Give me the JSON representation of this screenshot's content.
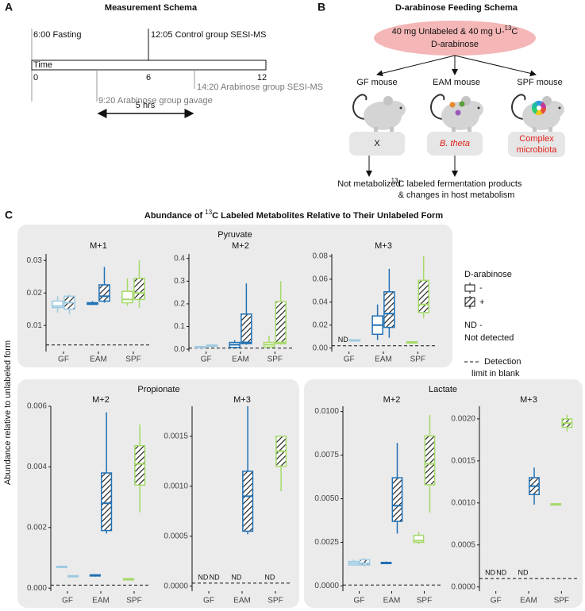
{
  "schema_a": {
    "label": "A",
    "title": "Measurement Schema",
    "fasting": "6:00 Fasting",
    "control": "12:05 Control group SESI-MS",
    "gavage": "9:20 Arabinose group gavage",
    "arabinose_ms": "14:20 Arabinose group SESI-MS",
    "axis_label": "Time",
    "ticks": [
      "0",
      "6",
      "12"
    ],
    "duration": "5 hrs"
  },
  "schema_b": {
    "label": "B",
    "title": "D-arabinose Feeding Schema",
    "dose": [
      "40 mg Unlabeled & 40 mg U-",
      "13",
      "C"
    ],
    "dose_line2": "D-arabinose",
    "mice": [
      {
        "name": "GF mouse",
        "microbe": [
          "X"
        ],
        "outcome": [
          "",
          "Not metabolized"
        ],
        "outcome_line2": null
      },
      {
        "name": "EAM mouse",
        "microbe": [
          "B. theta"
        ],
        "outcome": [
          "13",
          "C labeled fermentation products"
        ],
        "outcome_line2": "& changes in host metabolism"
      },
      {
        "name": "SPF mouse",
        "microbe": [
          "Complex",
          "microbiota"
        ],
        "outcome": null,
        "outcome_line2": null
      }
    ]
  },
  "panel_c": {
    "label": "C",
    "title": [
      "Abundance of ",
      "13",
      "C Labeled Metabolites Relative to Their Unlabeled Form"
    ],
    "ylabel": "Abundance relative to unlabeled form",
    "groups": [
      "Pyruvate",
      "Propionate",
      "Lactate"
    ],
    "legend": {
      "title": "D-arabinose",
      "nd": "ND -",
      "nd_desc": "Not detected",
      "detection": "Detection",
      "detection_desc": "limit in blank"
    }
  },
  "chart_data": [
    {
      "type": "box",
      "title": "M+1",
      "categories": [
        "GF",
        "EAM",
        "SPF"
      ],
      "colors": [
        "#9ecae1",
        "#2171b5",
        "#a6d96a"
      ],
      "ylim": [
        0.002,
        0.032
      ],
      "yticks": [
        0.01,
        0.02,
        0.03
      ],
      "detection_limit": 0.004,
      "series": [
        {
          "name": "-",
          "pattern": "plain",
          "values": [
            {
              "min": 0.014,
              "q1": 0.0155,
              "median": 0.016,
              "q3": 0.0175,
              "max": 0.019
            },
            {
              "min": 0.0163,
              "q1": 0.0165,
              "median": 0.0168,
              "q3": 0.017,
              "max": 0.0175
            },
            {
              "min": 0.016,
              "q1": 0.017,
              "median": 0.018,
              "q3": 0.0205,
              "max": 0.0245
            }
          ]
        },
        {
          "name": "+",
          "pattern": "hatched",
          "values": [
            {
              "min": 0.0135,
              "q1": 0.015,
              "median": 0.017,
              "q3": 0.019,
              "max": 0.0195
            },
            {
              "min": 0.017,
              "q1": 0.0175,
              "median": 0.019,
              "q3": 0.0225,
              "max": 0.028
            },
            {
              "min": 0.0155,
              "q1": 0.018,
              "median": 0.02,
              "q3": 0.0245,
              "max": 0.03
            }
          ]
        }
      ]
    },
    {
      "type": "box",
      "title": "M+2",
      "categories": [
        "GF",
        "EAM",
        "SPF"
      ],
      "colors": [
        "#9ecae1",
        "#2171b5",
        "#a6d96a"
      ],
      "ylim": [
        -0.01,
        0.42
      ],
      "yticks": [
        {
          "value": 0,
          "label": "0.0"
        },
        0.1,
        0.2,
        0.3,
        0.4
      ],
      "detection_limit": 0.005,
      "series": [
        {
          "name": "-",
          "pattern": "plain",
          "values": [
            {
              "min": 0.01,
              "q1": 0.01,
              "median": 0.01,
              "q3": 0.012,
              "max": 0.012
            },
            {
              "min": 0.005,
              "q1": 0.008,
              "median": 0.02,
              "q3": 0.03,
              "max": 0.04
            },
            {
              "min": 0.005,
              "q1": 0.01,
              "median": 0.02,
              "q3": 0.03,
              "max": 0.06
            }
          ]
        },
        {
          "name": "+",
          "pattern": "hatched",
          "values": [
            {
              "min": 0.015,
              "q1": 0.016,
              "median": 0.017,
              "q3": 0.018,
              "max": 0.019
            },
            {
              "min": 0.02,
              "q1": 0.025,
              "median": 0.03,
              "q3": 0.155,
              "max": 0.29
            },
            {
              "min": 0.02,
              "q1": 0.025,
              "median": 0.03,
              "q3": 0.21,
              "max": 0.3
            }
          ]
        }
      ]
    },
    {
      "type": "box",
      "title": "M+3",
      "categories": [
        "GF",
        "EAM",
        "SPF"
      ],
      "colors": [
        "#9ecae1",
        "#2171b5",
        "#a6d96a"
      ],
      "ylim": [
        -0.003,
        0.082
      ],
      "yticks": [
        {
          "value": 0,
          "label": "0.00"
        },
        {
          "value": 0.02,
          "label": "0.02"
        },
        {
          "value": 0.04,
          "label": "0.04"
        },
        {
          "value": 0.06,
          "label": "0.06"
        },
        {
          "value": 0.08,
          "label": "0.08"
        }
      ],
      "detection_limit": 0.002,
      "series": [
        {
          "name": "-",
          "pattern": "plain",
          "values": [
            null,
            {
              "min": 0.007,
              "q1": 0.012,
              "median": 0.02,
              "q3": 0.028,
              "max": 0.038
            },
            {
              "min": 0.0045,
              "q1": 0.005,
              "median": 0.0052,
              "q3": 0.0055,
              "max": 0.006
            }
          ],
          "value_labels": [
            "ND",
            null,
            null
          ]
        },
        {
          "name": "+",
          "pattern": "hatched",
          "values": [
            {
              "min": 0.006,
              "q1": 0.0065,
              "median": 0.007,
              "q3": 0.0072,
              "max": 0.0075
            },
            {
              "min": 0.009,
              "q1": 0.018,
              "median": 0.03,
              "q3": 0.049,
              "max": 0.069
            },
            {
              "min": 0.026,
              "q1": 0.031,
              "median": 0.038,
              "q3": 0.059,
              "max": 0.08
            }
          ]
        }
      ]
    },
    {
      "type": "box",
      "title": "M+2",
      "categories": [
        "GF",
        "EAM",
        "SPF"
      ],
      "colors": [
        "#9ecae1",
        "#2171b5",
        "#a6d96a"
      ],
      "ylim": [
        -0.0001,
        0.006
      ],
      "yticks": [
        {
          "value": 0,
          "label": "0.000"
        },
        {
          "value": 0.002,
          "label": "0.002"
        },
        {
          "value": 0.004,
          "label": "0.004"
        },
        {
          "value": 0.006,
          "label": "0.006"
        }
      ],
      "detection_limit": 0.0001,
      "series": [
        {
          "name": "-",
          "pattern": "plain",
          "values": [
            {
              "min": 0.00068,
              "q1": 0.0007,
              "median": 0.0007,
              "q3": 0.00072,
              "max": 0.00072
            },
            {
              "min": 0.00038,
              "q1": 0.0004,
              "median": 0.00042,
              "q3": 0.00044,
              "max": 0.00046
            },
            {
              "min": 0.00029,
              "q1": 0.0003,
              "median": 0.0003,
              "q3": 0.00031,
              "max": 0.00032
            }
          ]
        },
        {
          "name": "+",
          "pattern": "hatched",
          "values": [
            {
              "min": 0.00038,
              "q1": 0.0004,
              "median": 0.0004,
              "q3": 0.00041,
              "max": 0.00042
            },
            {
              "min": 0.0018,
              "q1": 0.0019,
              "median": 0.0028,
              "q3": 0.0038,
              "max": 0.0058
            },
            {
              "min": 0.0025,
              "q1": 0.0034,
              "median": 0.0041,
              "q3": 0.0047,
              "max": 0.0054
            }
          ]
        }
      ]
    },
    {
      "type": "box",
      "title": "M+3",
      "categories": [
        "GF",
        "EAM",
        "SPF"
      ],
      "colors": [
        "#9ecae1",
        "#2171b5",
        "#a6d96a"
      ],
      "ylim": [
        -5e-05,
        0.0018
      ],
      "yticks": [
        {
          "value": 0,
          "label": "0.0000"
        },
        {
          "value": 0.0005,
          "label": "0.0005"
        },
        {
          "value": 0.001,
          "label": "0.0010"
        },
        {
          "value": 0.0015,
          "label": "0.0015"
        }
      ],
      "detection_limit": 3e-05,
      "series": [
        {
          "name": "-",
          "pattern": "plain",
          "values": [
            null,
            null,
            null
          ],
          "value_labels": [
            "ND",
            "ND",
            "ND"
          ]
        },
        {
          "name": "+",
          "pattern": "hatched",
          "values": [
            null,
            {
              "min": 0.00052,
              "q1": 0.00055,
              "median": 0.0009,
              "q3": 0.00115,
              "max": 0.0018
            },
            {
              "min": 0.00095,
              "q1": 0.0012,
              "median": 0.00135,
              "q3": 0.0015,
              "max": 0.0015
            }
          ],
          "value_labels": [
            "ND",
            null,
            null
          ]
        }
      ]
    },
    {
      "type": "box",
      "title": "M+2",
      "categories": [
        "GF",
        "EAM",
        "SPF"
      ],
      "colors": [
        "#9ecae1",
        "#2171b5",
        "#a6d96a"
      ],
      "ylim": [
        -0.0003,
        0.0103
      ],
      "yticks": [
        {
          "value": 0,
          "label": "0.0000"
        },
        {
          "value": 0.0025,
          "label": "0.0025"
        },
        {
          "value": 0.005,
          "label": "0.0050"
        },
        {
          "value": 0.0075,
          "label": "0.0075"
        },
        {
          "value": 0.01,
          "label": "0.0100"
        }
      ],
      "detection_limit": 5e-05,
      "series": [
        {
          "name": "-",
          "pattern": "plain",
          "values": [
            {
              "min": 0.0012,
              "q1": 0.0012,
              "median": 0.0013,
              "q3": 0.0014,
              "max": 0.0015
            },
            {
              "min": 0.00125,
              "q1": 0.0013,
              "median": 0.0013,
              "q3": 0.00135,
              "max": 0.0014
            },
            {
              "min": 0.0024,
              "q1": 0.0025,
              "median": 0.0026,
              "q3": 0.0029,
              "max": 0.0031
            }
          ]
        },
        {
          "name": "+",
          "pattern": "hatched",
          "values": [
            {
              "min": 0.0011,
              "q1": 0.0012,
              "median": 0.0013,
              "q3": 0.0015,
              "max": 0.0016
            },
            {
              "min": 0.003,
              "q1": 0.0037,
              "median": 0.0046,
              "q3": 0.0062,
              "max": 0.0082
            },
            {
              "min": 0.0042,
              "q1": 0.0058,
              "median": 0.007,
              "q3": 0.0086,
              "max": 0.0098
            }
          ]
        }
      ]
    },
    {
      "type": "box",
      "title": "M+3",
      "categories": [
        "GF",
        "EAM",
        "SPF"
      ],
      "colors": [
        "#9ecae1",
        "#2171b5",
        "#a6d96a"
      ],
      "ylim": [
        -5e-05,
        0.00215
      ],
      "yticks": [
        {
          "value": 0,
          "label": "0.0000"
        },
        {
          "value": 0.0005,
          "label": "0.0005"
        },
        {
          "value": 0.001,
          "label": "0.0010"
        },
        {
          "value": 0.0015,
          "label": "0.0015"
        },
        {
          "value": 0.002,
          "label": "0.0020"
        }
      ],
      "detection_limit": 0.0001,
      "series": [
        {
          "name": "-",
          "pattern": "plain",
          "values": [
            null,
            null,
            {
              "min": 0.00097,
              "q1": 0.00098,
              "median": 0.00098,
              "q3": 0.00099,
              "max": 0.001
            }
          ],
          "value_labels": [
            "ND",
            "ND",
            null
          ]
        },
        {
          "name": "+",
          "pattern": "hatched",
          "values": [
            null,
            {
              "min": 0.00098,
              "q1": 0.0011,
              "median": 0.0012,
              "q3": 0.0013,
              "max": 0.00142
            },
            {
              "min": 0.00185,
              "q1": 0.0019,
              "median": 0.00195,
              "q3": 0.002,
              "max": 0.00205
            }
          ],
          "value_labels": [
            "ND",
            null,
            null
          ]
        }
      ]
    }
  ]
}
